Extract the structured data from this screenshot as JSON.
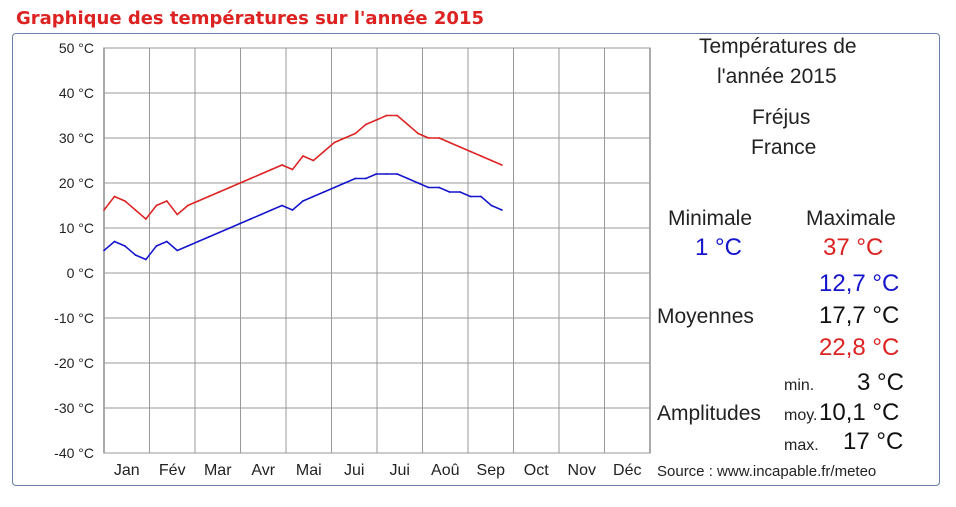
{
  "page": {
    "title": "Graphique des températures sur l'année 2015"
  },
  "panel": {
    "title_line1": "Températures de",
    "title_line2": "l'année 2015",
    "city": "Fréjus",
    "country": "France",
    "minimale_label": "Minimale",
    "maximale_label": "Maximale",
    "minimale_value": "1 °C",
    "maximale_value": "37 °C",
    "moyennes_label": "Moyennes",
    "moyenne_min": "12,7 °C",
    "moyenne_moy": "17,7 °C",
    "moyenne_max": "22,8 °C",
    "amplitudes_label": "Amplitudes",
    "amp_min_label": "min.",
    "amp_moy_label": "moy.",
    "amp_max_label": "max.",
    "amp_min_value": "3 °C",
    "amp_moy_value": "10,1 °C",
    "amp_max_value": "17 °C",
    "source": "Source : www.incapable.fr/meteo"
  },
  "colors": {
    "min_series": "#1515cc",
    "max_series": "#dd2222",
    "grid": "#999999",
    "frame": "#6a7fa8"
  },
  "chart_data": {
    "type": "line",
    "title": "",
    "ylim": [
      -40,
      50
    ],
    "yticks": [
      "50 °C",
      "40 °C",
      "30 °C",
      "20 °C",
      "10 °C",
      "0 °C",
      "-10 °C",
      "-20 °C",
      "-30 °C",
      "-40 °C"
    ],
    "ytick_values": [
      50,
      40,
      30,
      20,
      10,
      0,
      -10,
      -20,
      -30,
      -40
    ],
    "months": [
      "Jan",
      "Fév",
      "Mar",
      "Avr",
      "Mai",
      "Jui",
      "Jui",
      "Aoû",
      "Sep",
      "Oct",
      "Nov",
      "Déc"
    ],
    "grid": true,
    "series": [
      {
        "color": "#dd2222",
        "x_day": [
          1,
          8,
          15,
          22,
          29,
          36,
          43,
          50,
          57,
          64,
          71,
          78,
          85,
          92,
          99,
          106,
          113,
          120,
          127,
          134,
          141,
          148,
          155,
          162,
          169,
          176,
          183,
          190,
          197,
          204,
          211,
          218,
          225,
          232,
          239,
          246,
          253,
          260,
          267
        ],
        "values": [
          14,
          17,
          16,
          14,
          12,
          15,
          16,
          13,
          15,
          16,
          17,
          18,
          19,
          20,
          21,
          22,
          23,
          24,
          23,
          26,
          25,
          27,
          29,
          30,
          31,
          33,
          34,
          35,
          35,
          33,
          31,
          30,
          30,
          29,
          28,
          27,
          26,
          25,
          24
        ]
      },
      {
        "color": "#1515cc",
        "x_day": [
          1,
          8,
          15,
          22,
          29,
          36,
          43,
          50,
          57,
          64,
          71,
          78,
          85,
          92,
          99,
          106,
          113,
          120,
          127,
          134,
          141,
          148,
          155,
          162,
          169,
          176,
          183,
          190,
          197,
          204,
          211,
          218,
          225,
          232,
          239,
          246,
          253,
          260,
          267
        ],
        "values": [
          5,
          7,
          6,
          4,
          3,
          6,
          7,
          5,
          6,
          7,
          8,
          9,
          10,
          11,
          12,
          13,
          14,
          15,
          14,
          16,
          17,
          18,
          19,
          20,
          21,
          21,
          22,
          22,
          22,
          21,
          20,
          19,
          19,
          18,
          18,
          17,
          17,
          15,
          14
        ]
      }
    ]
  }
}
